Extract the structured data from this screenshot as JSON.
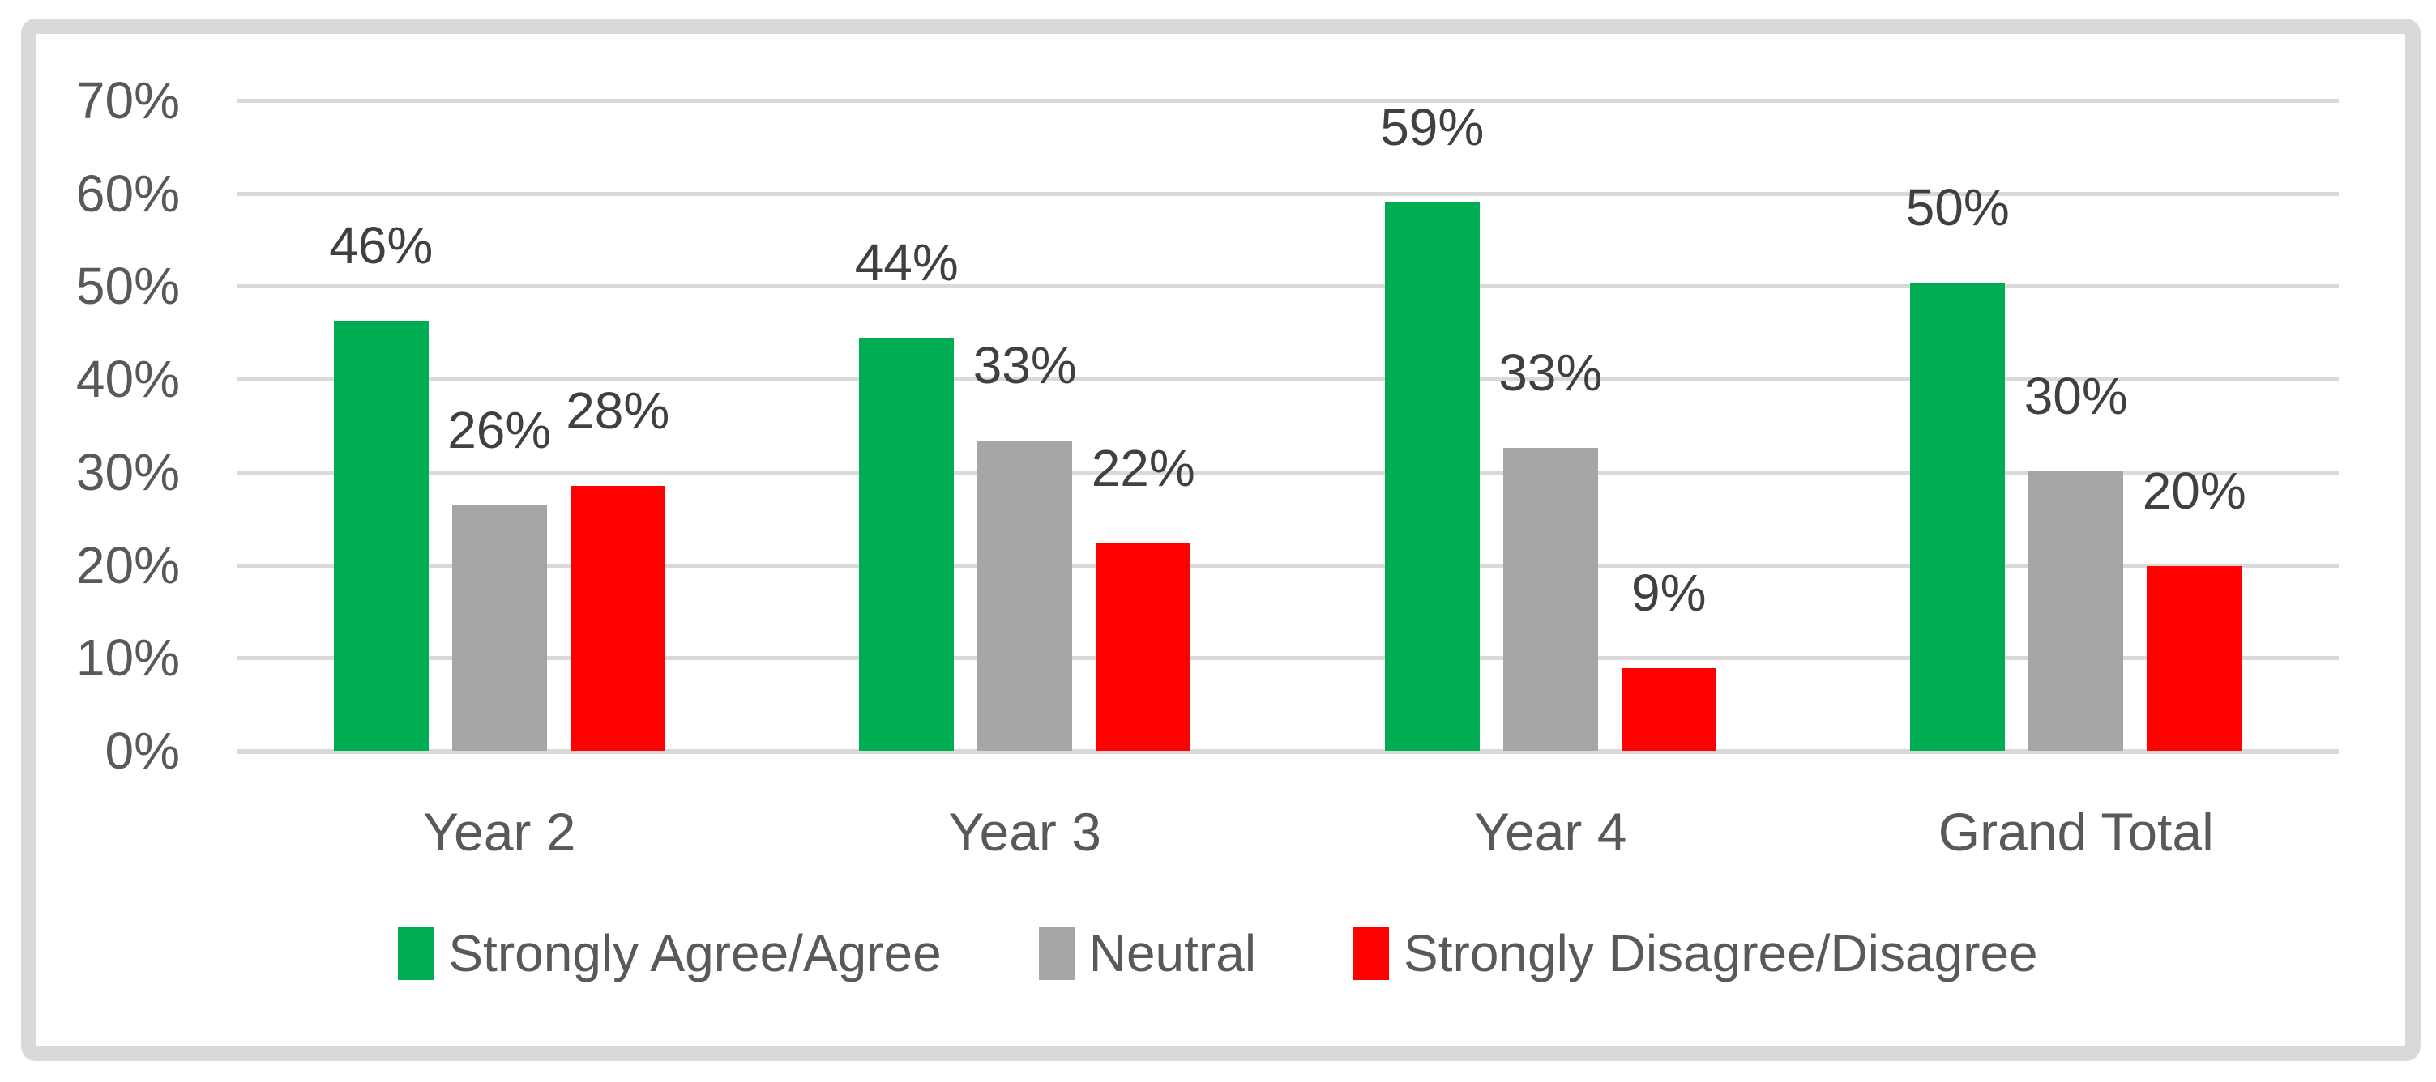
{
  "chart_data": {
    "type": "bar",
    "title": "",
    "categories": [
      "Year 2",
      "Year 3",
      "Year 4",
      "Grand Total"
    ],
    "series": [
      {
        "name": "Strongly Agree/Agree",
        "color": "#00AD52",
        "values": [
          46.3,
          44.5,
          59.0,
          50.4
        ],
        "labels": [
          "46%",
          "44%",
          "59%",
          "50%"
        ]
      },
      {
        "name": "Neutral",
        "color": "#A6A6A6",
        "values": [
          26.4,
          33.4,
          32.6,
          30.1
        ],
        "labels": [
          "26%",
          "33%",
          "33%",
          "30%"
        ]
      },
      {
        "name": "Strongly Disagree/Disagree",
        "color": "#FF0000",
        "values": [
          28.5,
          22.3,
          8.9,
          19.9
        ],
        "labels": [
          "28%",
          "22%",
          "9%",
          "20%"
        ]
      }
    ],
    "y_axis": {
      "min": 0,
      "max": 70,
      "step": 10,
      "tick_values": [
        70,
        60,
        50,
        40,
        30,
        20,
        10,
        0
      ],
      "tick_labels": [
        "70%",
        "60%",
        "50%",
        "40%",
        "30%",
        "20%",
        "10%",
        "0%"
      ]
    },
    "x_axis": {
      "labels": [
        "Year 2",
        "Year 3",
        "Year 4",
        "Grand Total"
      ]
    },
    "legend": {
      "position": "bottom",
      "entries": [
        "Strongly Agree/Agree",
        "Neutral",
        "Strongly Disagree/Disagree"
      ]
    },
    "grid": true,
    "data_labels": true
  },
  "colors": {
    "axis_text": "#595959",
    "data_label_text": "#404040",
    "gridline": "#D9D9D9",
    "frame_border": "#D9D9D9",
    "background": "#FFFFFF"
  }
}
